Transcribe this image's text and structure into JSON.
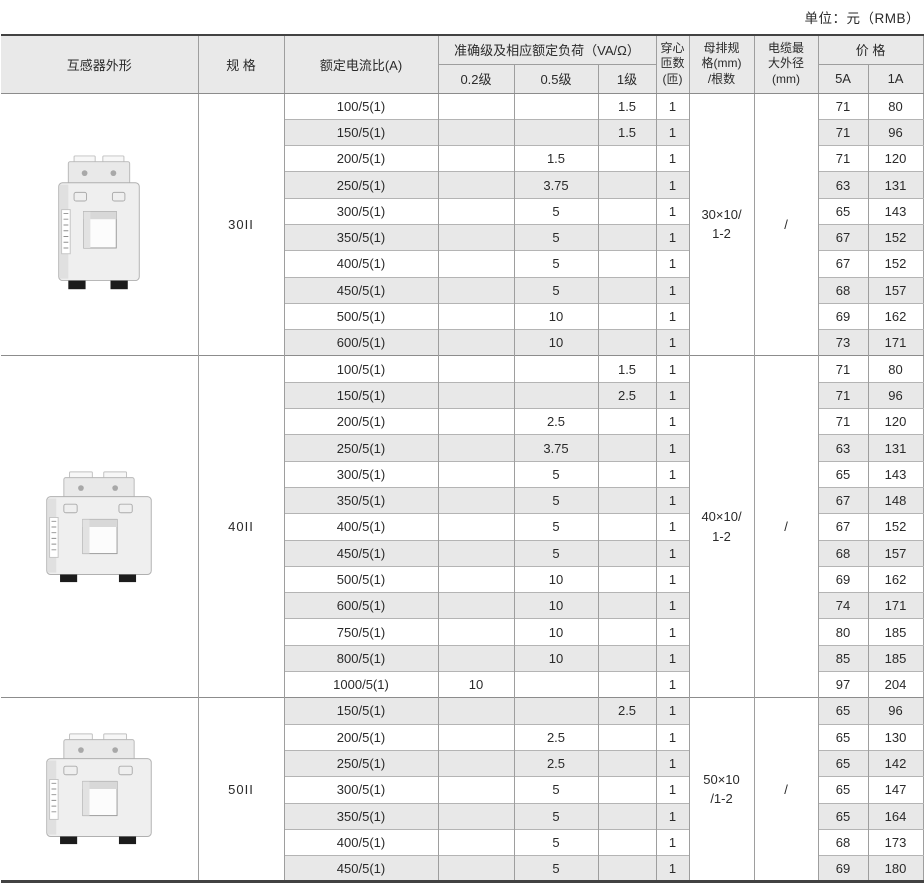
{
  "unit_label": "单位：元（RMB）",
  "table": {
    "header": {
      "appearance": "互感器外形",
      "spec": "规 格",
      "ratio": "额定电流比(A)",
      "accuracy_group": "准确级及相应额定负荷（VA/Ω）",
      "class_0_2": "0.2级",
      "class_0_5": "0.5级",
      "class_1": "1级",
      "turns": "穿心\n匝数\n(匝)",
      "busbar": "母排规\n格(mm)\n/根数",
      "cable": "电缆最\n大外径\n(mm)",
      "price_group": "价  格",
      "price_5a": "5A",
      "price_1a": "1A"
    },
    "row_fields": [
      "ratio",
      "class_0_2",
      "class_0_5",
      "class_1",
      "turns",
      "price_5a",
      "price_1a"
    ],
    "groups": [
      {
        "spec": "30II",
        "photo_icon": "current-transformer-photo",
        "busbar": "30×10/\n1-2",
        "cable": "/",
        "rows": [
          [
            "100/5(1)",
            "",
            "",
            "1.5",
            "1",
            "71",
            "80"
          ],
          [
            "150/5(1)",
            "",
            "",
            "1.5",
            "1",
            "71",
            "96"
          ],
          [
            "200/5(1)",
            "",
            "1.5",
            "",
            "1",
            "71",
            "120"
          ],
          [
            "250/5(1)",
            "",
            "3.75",
            "",
            "1",
            "63",
            "131"
          ],
          [
            "300/5(1)",
            "",
            "5",
            "",
            "1",
            "65",
            "143"
          ],
          [
            "350/5(1)",
            "",
            "5",
            "",
            "1",
            "67",
            "152"
          ],
          [
            "400/5(1)",
            "",
            "5",
            "",
            "1",
            "67",
            "152"
          ],
          [
            "450/5(1)",
            "",
            "5",
            "",
            "1",
            "68",
            "157"
          ],
          [
            "500/5(1)",
            "",
            "10",
            "",
            "1",
            "69",
            "162"
          ],
          [
            "600/5(1)",
            "",
            "10",
            "",
            "1",
            "73",
            "171"
          ]
        ]
      },
      {
        "spec": "40II",
        "photo_icon": "current-transformer-photo",
        "busbar": "40×10/\n1-2",
        "cable": "/",
        "rows": [
          [
            "100/5(1)",
            "",
            "",
            "1.5",
            "1",
            "71",
            "80"
          ],
          [
            "150/5(1)",
            "",
            "",
            "2.5",
            "1",
            "71",
            "96"
          ],
          [
            "200/5(1)",
            "",
            "2.5",
            "",
            "1",
            "71",
            "120"
          ],
          [
            "250/5(1)",
            "",
            "3.75",
            "",
            "1",
            "63",
            "131"
          ],
          [
            "300/5(1)",
            "",
            "5",
            "",
            "1",
            "65",
            "143"
          ],
          [
            "350/5(1)",
            "",
            "5",
            "",
            "1",
            "67",
            "148"
          ],
          [
            "400/5(1)",
            "",
            "5",
            "",
            "1",
            "67",
            "152"
          ],
          [
            "450/5(1)",
            "",
            "5",
            "",
            "1",
            "68",
            "157"
          ],
          [
            "500/5(1)",
            "",
            "10",
            "",
            "1",
            "69",
            "162"
          ],
          [
            "600/5(1)",
            "",
            "10",
            "",
            "1",
            "74",
            "171"
          ],
          [
            "750/5(1)",
            "",
            "10",
            "",
            "1",
            "80",
            "185"
          ],
          [
            "800/5(1)",
            "",
            "10",
            "",
            "1",
            "85",
            "185"
          ],
          [
            "1000/5(1)",
            "10",
            "",
            "",
            "1",
            "97",
            "204"
          ]
        ]
      },
      {
        "spec": "50II",
        "photo_icon": "current-transformer-photo",
        "busbar": "50×10\n/1-2",
        "cable": "/",
        "rows": [
          [
            "150/5(1)",
            "",
            "",
            "2.5",
            "1",
            "65",
            "96"
          ],
          [
            "200/5(1)",
            "",
            "2.5",
            "",
            "1",
            "65",
            "130"
          ],
          [
            "250/5(1)",
            "",
            "2.5",
            "",
            "1",
            "65",
            "142"
          ],
          [
            "300/5(1)",
            "",
            "5",
            "",
            "1",
            "65",
            "147"
          ],
          [
            "350/5(1)",
            "",
            "5",
            "",
            "1",
            "65",
            "164"
          ],
          [
            "400/5(1)",
            "",
            "5",
            "",
            "1",
            "68",
            "173"
          ],
          [
            "450/5(1)",
            "",
            "5",
            "",
            "1",
            "69",
            "180"
          ]
        ]
      }
    ]
  }
}
